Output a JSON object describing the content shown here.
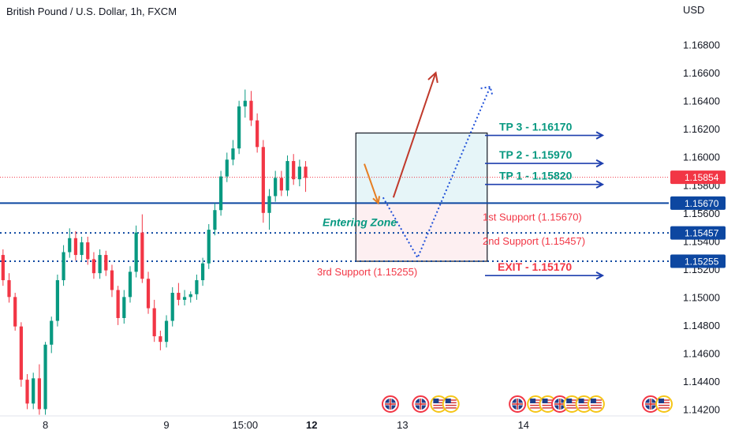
{
  "chart_data": {
    "type": "candlestick",
    "title": "British Pound / U.S. Dollar, 1h, FXCM",
    "currency_label": "USD",
    "y_ticks": [
      "1.16800",
      "1.16600",
      "1.16400",
      "1.16200",
      "1.16000",
      "1.15800",
      "1.15600",
      "1.15400",
      "1.15200",
      "1.15000",
      "1.14800",
      "1.14600",
      "1.14400",
      "1.14200"
    ],
    "y_tick_values": [
      1.168,
      1.166,
      1.164,
      1.162,
      1.16,
      1.158,
      1.156,
      1.154,
      1.152,
      1.15,
      1.148,
      1.146,
      1.144,
      1.142
    ],
    "y_range": [
      1.1418,
      1.1695
    ],
    "x_ticks": [
      {
        "label": "8",
        "index": 7,
        "bold": false
      },
      {
        "label": "9",
        "index": 27,
        "bold": false
      },
      {
        "label": "15:00",
        "index": 40,
        "bold": false
      },
      {
        "label": "12",
        "index": 51,
        "bold": true
      },
      {
        "label": "13",
        "index": 66,
        "bold": false
      },
      {
        "label": "14",
        "index": 86,
        "bold": false
      }
    ],
    "x_range": [
      -0.5,
      110
    ],
    "last_price": {
      "label": "1.15854",
      "value": 1.15854,
      "color": "#f23645"
    },
    "price_labels": [
      {
        "label": "1.15670",
        "value": 1.1567,
        "style": "solid"
      },
      {
        "label": "1.15457",
        "value": 1.15457,
        "style": "dotted"
      },
      {
        "label": "1.15255",
        "value": 1.15255,
        "style": "dotted"
      }
    ],
    "candles": [
      [
        1.153,
        1.1534,
        1.1508,
        1.1512
      ],
      [
        1.1512,
        1.1517,
        1.1496,
        1.15
      ],
      [
        1.15,
        1.1503,
        1.1476,
        1.1479
      ],
      [
        1.1479,
        1.1482,
        1.1436,
        1.1441
      ],
      [
        1.1441,
        1.1445,
        1.142,
        1.1424
      ],
      [
        1.1424,
        1.1446,
        1.142,
        1.1442
      ],
      [
        1.1442,
        1.1452,
        1.1416,
        1.142
      ],
      [
        1.142,
        1.1468,
        1.1416,
        1.1466
      ],
      [
        1.1466,
        1.1486,
        1.146,
        1.1483
      ],
      [
        1.1483,
        1.1516,
        1.1479,
        1.1512
      ],
      [
        1.1512,
        1.1537,
        1.1508,
        1.1532
      ],
      [
        1.1532,
        1.1549,
        1.1528,
        1.1542
      ],
      [
        1.1542,
        1.1547,
        1.1526,
        1.153
      ],
      [
        1.153,
        1.1543,
        1.1526,
        1.1539
      ],
      [
        1.1539,
        1.1543,
        1.1523,
        1.1527
      ],
      [
        1.1527,
        1.1532,
        1.1513,
        1.1517
      ],
      [
        1.1517,
        1.1534,
        1.1513,
        1.153
      ],
      [
        1.153,
        1.1533,
        1.1515,
        1.1519
      ],
      [
        1.1519,
        1.1523,
        1.15,
        1.1505
      ],
      [
        1.1505,
        1.1508,
        1.148,
        1.1485
      ],
      [
        1.1485,
        1.1505,
        1.1481,
        1.15
      ],
      [
        1.15,
        1.1522,
        1.1496,
        1.1518
      ],
      [
        1.1518,
        1.1551,
        1.1514,
        1.1546
      ],
      [
        1.1546,
        1.1559,
        1.151,
        1.1513
      ],
      [
        1.1513,
        1.1518,
        1.1488,
        1.1492
      ],
      [
        1.1492,
        1.1498,
        1.1468,
        1.1472
      ],
      [
        1.1472,
        1.1476,
        1.1462,
        1.1468
      ],
      [
        1.1468,
        1.1487,
        1.1464,
        1.1483
      ],
      [
        1.1483,
        1.1507,
        1.1479,
        1.1503
      ],
      [
        1.1503,
        1.151,
        1.1494,
        1.1498
      ],
      [
        1.1498,
        1.1505,
        1.1494,
        1.15
      ],
      [
        1.15,
        1.1504,
        1.1496,
        1.1502
      ],
      [
        1.1502,
        1.1516,
        1.1498,
        1.1512
      ],
      [
        1.1512,
        1.1528,
        1.1508,
        1.1524
      ],
      [
        1.1524,
        1.1552,
        1.152,
        1.1548
      ],
      [
        1.1548,
        1.1567,
        1.1544,
        1.1562
      ],
      [
        1.1562,
        1.159,
        1.1558,
        1.1586
      ],
      [
        1.1586,
        1.1603,
        1.1582,
        1.1598
      ],
      [
        1.1598,
        1.1612,
        1.1594,
        1.1606
      ],
      [
        1.1606,
        1.164,
        1.1602,
        1.1636
      ],
      [
        1.1636,
        1.1648,
        1.1628,
        1.164
      ],
      [
        1.164,
        1.1647,
        1.1622,
        1.1626
      ],
      [
        1.1626,
        1.1631,
        1.1603,
        1.1607
      ],
      [
        1.1607,
        1.1612,
        1.1553,
        1.156
      ],
      [
        1.156,
        1.1577,
        1.1548,
        1.1572
      ],
      [
        1.1572,
        1.159,
        1.1568,
        1.1585
      ],
      [
        1.1585,
        1.159,
        1.1572,
        1.1576
      ],
      [
        1.1576,
        1.1601,
        1.1572,
        1.1597
      ],
      [
        1.1597,
        1.1602,
        1.158,
        1.1584
      ],
      [
        1.1584,
        1.1598,
        1.1579,
        1.1593
      ],
      [
        1.1593,
        1.1597,
        1.1575,
        1.1585
      ]
    ],
    "targets": [
      {
        "label": "TP 3 - 1.16170",
        "value": 1.1617,
        "kind": "tp"
      },
      {
        "label": "TP 2 - 1.15970",
        "value": 1.1597,
        "kind": "tp"
      },
      {
        "label": "TP 1 - 1.15820",
        "value": 1.1582,
        "kind": "tp"
      },
      {
        "label": "EXIT - 1.15170",
        "value": 1.1517,
        "kind": "exit"
      }
    ],
    "supports": [
      {
        "label": "1st Support (1.15670)",
        "value": 1.1567
      },
      {
        "label": "2nd Support (1.15457)",
        "value": 1.15457
      },
      {
        "label": "3rd Support (1.15255)",
        "value": 1.15255
      }
    ],
    "zone_label": "Entering Zone",
    "zone_box": {
      "x_from": 58.3,
      "x_to": 80,
      "top": 1.1617,
      "mid": 1.1567,
      "bottom": 1.15255
    },
    "arrow_solid": {
      "from": [
        64.5,
        1.1571
      ],
      "to": [
        71.5,
        1.166
      ]
    },
    "arrow_entry": {
      "from": [
        59.7,
        1.1595
      ],
      "to": [
        62,
        1.1567
      ]
    },
    "arrow_dotted": [
      [
        62.8,
        1.1571
      ],
      [
        68.5,
        1.1528
      ],
      [
        80.5,
        1.165
      ]
    ],
    "event_badges": [
      {
        "index": 64,
        "flag": "gb"
      },
      {
        "index": 69,
        "flag": "gb"
      },
      {
        "index": 72,
        "flag": "us"
      },
      {
        "index": 74,
        "flag": "us"
      },
      {
        "index": 85,
        "flag": "gb"
      },
      {
        "index": 88,
        "flag": "us"
      },
      {
        "index": 90,
        "flag": "us"
      },
      {
        "index": 92,
        "flag": "gb"
      },
      {
        "index": 94,
        "flag": "us"
      },
      {
        "index": 96,
        "flag": "us"
      },
      {
        "index": 98,
        "flag": "us"
      },
      {
        "index": 107,
        "flag": "gb"
      },
      {
        "index": 111,
        "flag": "us"
      }
    ]
  }
}
